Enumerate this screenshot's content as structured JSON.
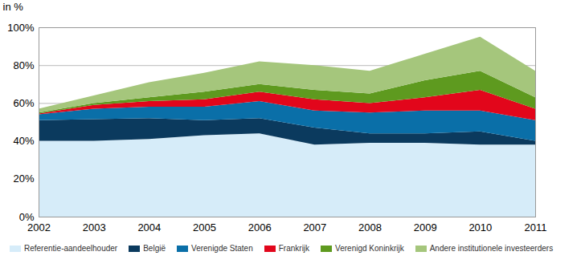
{
  "chart_data": {
    "type": "area",
    "stacked": true,
    "grid": true,
    "y_label": "in %",
    "x": [
      2002,
      2003,
      2004,
      2005,
      2006,
      2007,
      2008,
      2009,
      2010,
      2011
    ],
    "xlim": [
      2002,
      2011
    ],
    "xticks": [
      2002,
      2003,
      2004,
      2005,
      2006,
      2007,
      2008,
      2009,
      2010,
      2011
    ],
    "ylim": [
      0,
      100
    ],
    "yticks": [
      {
        "value": 0,
        "label": "0%"
      },
      {
        "value": 20,
        "label": "20%"
      },
      {
        "value": 40,
        "label": "40%"
      },
      {
        "value": 60,
        "label": "60%"
      },
      {
        "value": 80,
        "label": "80%"
      },
      {
        "value": 100,
        "label": "100%"
      }
    ],
    "legend": "bottom",
    "series": [
      {
        "name": "Referentie-aandeelhouder",
        "color": "#d6ecf9",
        "values": [
          40,
          40,
          41,
          43,
          44,
          38,
          39,
          39,
          38,
          38
        ]
      },
      {
        "name": "België",
        "color": "#0b3a5e",
        "values": [
          11,
          11.5,
          11,
          8,
          8,
          9,
          5,
          5,
          7,
          2
        ]
      },
      {
        "name": "Verenigde Staten",
        "color": "#0a6fa8",
        "values": [
          3,
          5.5,
          6,
          7,
          9,
          9,
          11,
          12,
          11,
          11
        ]
      },
      {
        "name": "Frankrijk",
        "color": "#e2061b",
        "values": [
          0.5,
          2,
          3,
          4,
          5,
          6,
          5,
          7,
          11,
          6
        ]
      },
      {
        "name": "Verenigd Koninkrijk",
        "color": "#5e9a1f",
        "values": [
          0.5,
          1,
          2,
          4,
          4,
          5,
          5,
          9,
          10,
          6
        ]
      },
      {
        "name": "Andere institutionele investeerders",
        "color": "#a5c67c",
        "values": [
          2,
          4,
          8,
          10,
          12,
          13,
          12,
          14,
          18,
          14
        ]
      }
    ]
  }
}
